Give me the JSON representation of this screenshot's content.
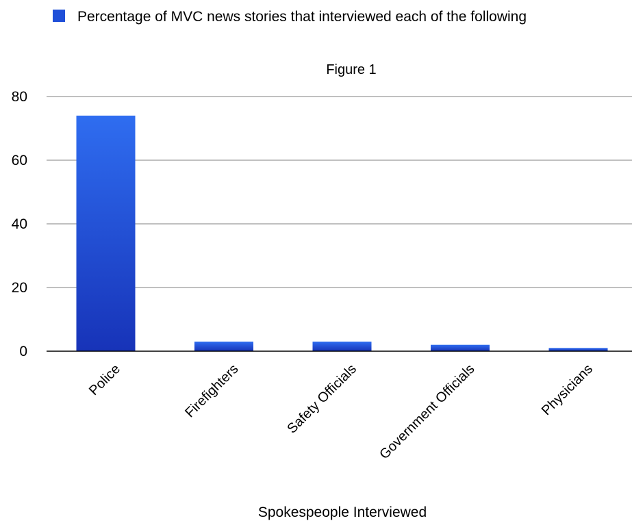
{
  "chart_data": {
    "type": "bar",
    "title": "Figure 1",
    "xlabel": "Spokespeople Interviewed",
    "ylabel": "",
    "categories": [
      "Police",
      "Firefighters",
      "Safety Officials",
      "Government Officials",
      "Physicians"
    ],
    "series": [
      {
        "name": "Percentage of MVC news stories that interviewed each of the following",
        "values": [
          74,
          3,
          3,
          2,
          1
        ]
      }
    ],
    "ylim": [
      0,
      80
    ],
    "yticks": [
      "0",
      "20",
      "40",
      "60",
      "80"
    ],
    "grid": true,
    "legend_position": "top-left",
    "colors": {
      "bar_top": "#2f6df0",
      "bar_bottom": "#1733b8",
      "legend_swatch": "#1f4fd8",
      "grid": "#9a9a9a",
      "axis": "#000000"
    }
  }
}
